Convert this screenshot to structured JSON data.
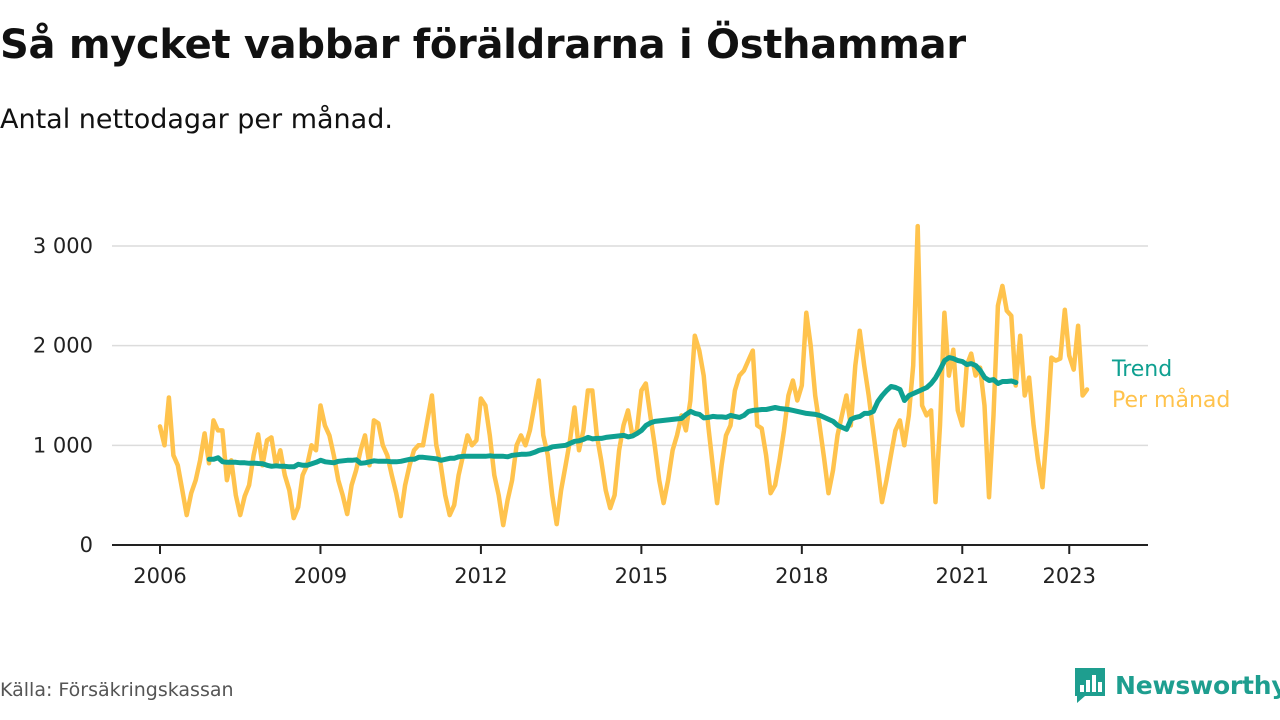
{
  "title": "Så mycket vabbar föräldrarna i Östhammar",
  "subtitle": "Antal nettodagar per månad.",
  "source": "Källa: Försäkringskassan",
  "brand": "Newsworthy",
  "colors": {
    "monthly": "#ffc34d",
    "trend": "#0fa091",
    "grid": "#dcdcdc",
    "axis": "#222222",
    "brand": "#1e9e8f"
  },
  "chart_data": {
    "type": "line",
    "title": "Så mycket vabbar föräldrarna i Östhammar",
    "subtitle": "Antal nettodagar per månad.",
    "xlabel": "",
    "ylabel": "",
    "x_range": [
      2006.0,
      2023.5
    ],
    "ylim": [
      0,
      3200
    ],
    "y_ticks": [
      0,
      1000,
      2000,
      3000
    ],
    "y_tick_labels": [
      "0",
      "1 000",
      "2 000",
      "3 000"
    ],
    "x_ticks": [
      2006,
      2009,
      2012,
      2015,
      2018,
      2021,
      2023
    ],
    "x_tick_labels": [
      "2006",
      "2009",
      "2012",
      "2015",
      "2018",
      "2021",
      "2023"
    ],
    "legend_placement": "right end of lines",
    "series": [
      {
        "name": "Per månad",
        "start": 2006.0,
        "step": 0.08333,
        "values": [
          1190,
          1000,
          1480,
          900,
          800,
          550,
          300,
          520,
          650,
          850,
          1120,
          820,
          1250,
          1150,
          1150,
          650,
          850,
          500,
          300,
          490,
          600,
          900,
          1110,
          800,
          1050,
          1080,
          800,
          950,
          700,
          550,
          270,
          380,
          700,
          800,
          1000,
          950,
          1400,
          1200,
          1100,
          900,
          650,
          500,
          310,
          600,
          750,
          950,
          1100,
          800,
          1250,
          1220,
          1000,
          900,
          700,
          520,
          290,
          600,
          800,
          950,
          1000,
          1000,
          1250,
          1500,
          1000,
          800,
          500,
          300,
          400,
          700,
          900,
          1100,
          1000,
          1050,
          1470,
          1400,
          1100,
          700,
          500,
          200,
          450,
          650,
          1000,
          1100,
          1000,
          1150,
          1400,
          1650,
          1100,
          900,
          500,
          210,
          550,
          800,
          1050,
          1380,
          950,
          1150,
          1550,
          1550,
          1100,
          850,
          550,
          370,
          500,
          950,
          1200,
          1350,
          1100,
          1150,
          1550,
          1620,
          1300,
          1000,
          650,
          420,
          650,
          950,
          1100,
          1300,
          1150,
          1450,
          2100,
          1950,
          1700,
          1200,
          800,
          420,
          800,
          1100,
          1200,
          1550,
          1700,
          1750,
          1850,
          1950,
          1200,
          1170,
          900,
          520,
          600,
          850,
          1150,
          1500,
          1650,
          1450,
          1600,
          2330,
          2000,
          1500,
          1200,
          870,
          520,
          750,
          1100,
          1300,
          1500,
          1200,
          1800,
          2150,
          1800,
          1500,
          1150,
          800,
          430,
          650,
          900,
          1150,
          1250,
          1000,
          1300,
          1800,
          3200,
          1400,
          1300,
          1350,
          430,
          1200,
          2330,
          1700,
          1960,
          1350,
          1200,
          1800,
          1920,
          1700,
          1780,
          1400,
          480,
          1300,
          2400,
          2600,
          2350,
          2300,
          1600,
          2100,
          1500,
          1680,
          1200,
          850,
          580,
          1150,
          1880,
          1850,
          1870,
          2360,
          1900,
          1760,
          2200,
          1500,
          1560
        ]
      },
      {
        "name": "Trend",
        "start": 2006.92,
        "step": 0.08333,
        "values": [
          860,
          860,
          875,
          835,
          830,
          830,
          830,
          825,
          825,
          820,
          822,
          818,
          815,
          800,
          790,
          795,
          790,
          790,
          785,
          785,
          810,
          800,
          800,
          815,
          830,
          850,
          835,
          830,
          825,
          840,
          845,
          850,
          850,
          855,
          820,
          825,
          835,
          845,
          840,
          840,
          840,
          835,
          835,
          840,
          850,
          860,
          860,
          880,
          880,
          875,
          870,
          865,
          850,
          860,
          870,
          870,
          885,
          890,
          890,
          890,
          890,
          890,
          890,
          895,
          890,
          890,
          890,
          885,
          900,
          905,
          910,
          910,
          915,
          930,
          950,
          960,
          965,
          985,
          990,
          995,
          1000,
          1020,
          1040,
          1045,
          1060,
          1080,
          1065,
          1070,
          1070,
          1080,
          1085,
          1090,
          1095,
          1100,
          1085,
          1095,
          1120,
          1150,
          1200,
          1225,
          1240,
          1245,
          1250,
          1255,
          1260,
          1265,
          1270,
          1310,
          1340,
          1320,
          1310,
          1275,
          1280,
          1290,
          1285,
          1285,
          1280,
          1300,
          1290,
          1280,
          1300,
          1340,
          1350,
          1355,
          1360,
          1360,
          1370,
          1380,
          1370,
          1365,
          1360,
          1350,
          1340,
          1330,
          1320,
          1315,
          1310,
          1300,
          1280,
          1260,
          1240,
          1200,
          1180,
          1160,
          1260,
          1280,
          1290,
          1320,
          1320,
          1340,
          1440,
          1500,
          1550,
          1590,
          1580,
          1560,
          1450,
          1500,
          1520,
          1540,
          1560,
          1580,
          1620,
          1680,
          1760,
          1850,
          1880,
          1870,
          1850,
          1840,
          1810,
          1820,
          1800,
          1750,
          1680,
          1650,
          1660,
          1620,
          1640,
          1640,
          1645,
          1630
        ]
      }
    ]
  }
}
